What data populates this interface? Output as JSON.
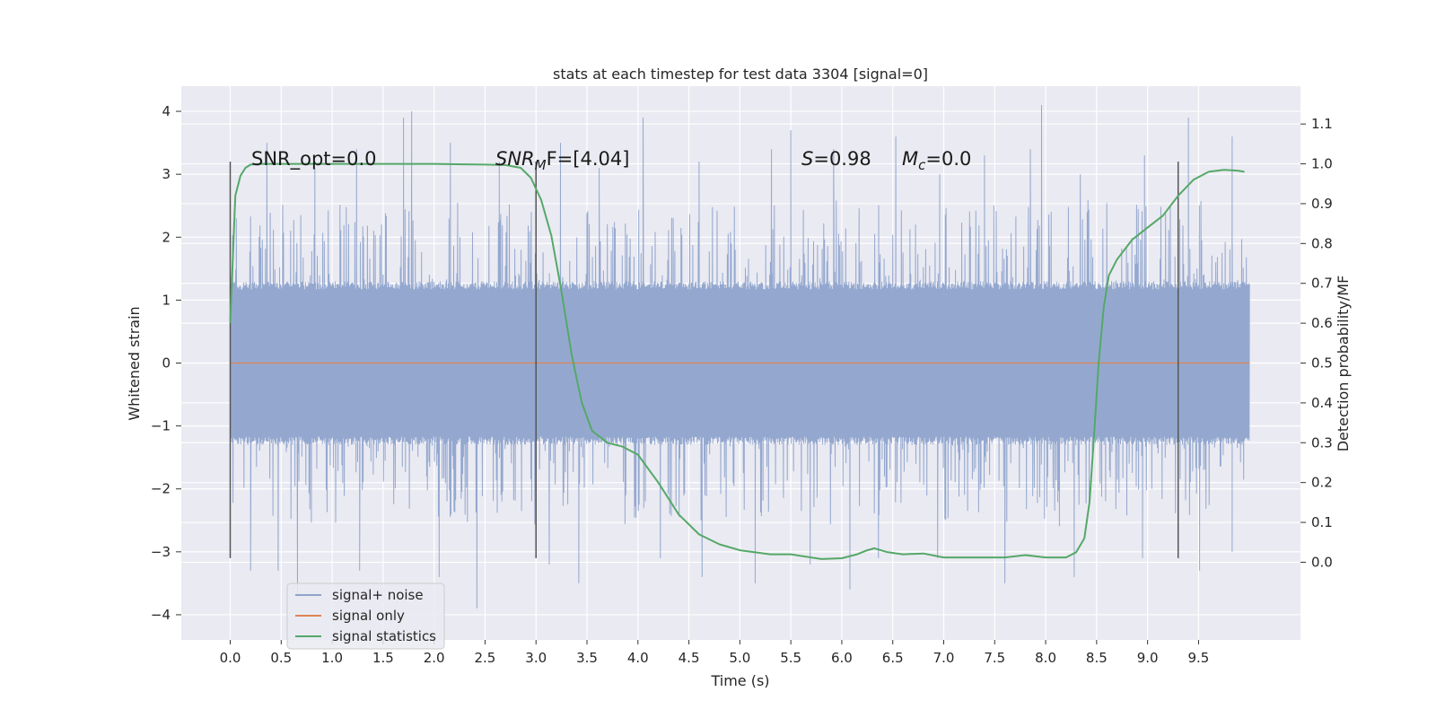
{
  "chart_data": {
    "type": "line",
    "title": "stats at each timestep for test data 3304 [signal=0]",
    "xlabel": "Time (s)",
    "ylabel": "Whitened strain",
    "y2label": "Detection probability/MF",
    "xlim": [
      -0.48,
      10.5
    ],
    "ylim": [
      -4.4,
      4.4
    ],
    "y2lim": [
      -0.195,
      1.195
    ],
    "xticks": [
      0.0,
      0.5,
      1.0,
      1.5,
      2.0,
      2.5,
      3.0,
      3.5,
      4.0,
      4.5,
      5.0,
      5.5,
      6.0,
      6.5,
      7.0,
      7.5,
      8.0,
      8.5,
      9.0,
      9.5
    ],
    "xtick_labels": [
      "0.0",
      "0.5",
      "1.0",
      "1.5",
      "2.0",
      "2.5",
      "3.0",
      "3.5",
      "4.0",
      "4.5",
      "5.0",
      "5.5",
      "6.0",
      "6.5",
      "7.0",
      "7.5",
      "8.0",
      "8.5",
      "9.0",
      "9.5"
    ],
    "yticks": [
      -4,
      -3,
      -2,
      -1,
      0,
      1,
      2,
      3,
      4
    ],
    "ytick_labels": [
      "−4",
      "−3",
      "−2",
      "−1",
      "0",
      "1",
      "2",
      "3",
      "4"
    ],
    "y2ticks": [
      0.0,
      0.1,
      0.2,
      0.3,
      0.4,
      0.5,
      0.6,
      0.7,
      0.8,
      0.9,
      1.0,
      1.1
    ],
    "y2tick_labels": [
      "0.0",
      "0.1",
      "0.2",
      "0.3",
      "0.4",
      "0.5",
      "0.6",
      "0.7",
      "0.8",
      "0.9",
      "1.0",
      "1.1"
    ],
    "grid": true,
    "legend_position": "lower-left",
    "noise": {
      "t_range": [
        0.0,
        10.0
      ],
      "envelope": 1.3,
      "upper_peak": [
        [
          0.06,
          2.3
        ],
        [
          0.36,
          3.5
        ],
        [
          0.83,
          3.1
        ],
        [
          1.24,
          3.4
        ],
        [
          1.7,
          3.9
        ],
        [
          1.78,
          4.0
        ],
        [
          2.16,
          3.5
        ],
        [
          2.64,
          3.2
        ],
        [
          3.24,
          3.5
        ],
        [
          3.62,
          3.1
        ],
        [
          4.05,
          3.9
        ],
        [
          4.6,
          3.2
        ],
        [
          5.31,
          3.4
        ],
        [
          5.5,
          3.7
        ],
        [
          5.92,
          3.4
        ],
        [
          6.53,
          3.6
        ],
        [
          6.96,
          3.0
        ],
        [
          7.4,
          3.3
        ],
        [
          7.85,
          3.4
        ],
        [
          7.96,
          4.1
        ],
        [
          8.34,
          3.0
        ],
        [
          8.97,
          3.3
        ],
        [
          9.4,
          3.9
        ],
        [
          9.83,
          3.6
        ]
      ],
      "lower_peak": [
        [
          0.2,
          -3.3
        ],
        [
          0.47,
          -3.3
        ],
        [
          0.66,
          -3.7
        ],
        [
          1.27,
          -3.3
        ],
        [
          2.05,
          -3.4
        ],
        [
          2.42,
          -3.9
        ],
        [
          3.13,
          -3.2
        ],
        [
          3.42,
          -3.5
        ],
        [
          4.22,
          -3.1
        ],
        [
          4.63,
          -3.4
        ],
        [
          5.15,
          -3.5
        ],
        [
          5.69,
          -3.2
        ],
        [
          6.08,
          -3.6
        ],
        [
          6.36,
          -3.1
        ],
        [
          6.94,
          -3.1
        ],
        [
          7.6,
          -3.5
        ],
        [
          8.28,
          -3.4
        ],
        [
          8.95,
          -3.1
        ],
        [
          9.51,
          -3.3
        ],
        [
          9.83,
          -3.0
        ]
      ]
    },
    "series": [
      {
        "name": "signal+ noise",
        "axis": "left",
        "color": "#8fa4cc"
      },
      {
        "name": "signal only",
        "axis": "left",
        "color": "#dd8452",
        "x": [
          0.0,
          10.0
        ],
        "y": [
          0.0,
          0.0
        ]
      },
      {
        "name": "signal statistics",
        "axis": "right",
        "color": "#55a868",
        "x": [
          0.0,
          0.05,
          0.1,
          0.15,
          0.2,
          0.3,
          0.5,
          1.0,
          1.5,
          2.0,
          2.5,
          2.7,
          2.85,
          2.95,
          3.05,
          3.15,
          3.25,
          3.35,
          3.45,
          3.55,
          3.7,
          3.85,
          4.0,
          4.2,
          4.4,
          4.6,
          4.8,
          5.0,
          5.3,
          5.5,
          5.8,
          6.0,
          6.15,
          6.25,
          6.32,
          6.45,
          6.6,
          6.8,
          7.0,
          7.3,
          7.6,
          7.8,
          8.0,
          8.2,
          8.3,
          8.38,
          8.43,
          8.47,
          8.52,
          8.57,
          8.62,
          8.7,
          8.85,
          9.0,
          9.15,
          9.3,
          9.45,
          9.6,
          9.75,
          9.88,
          9.95
        ],
        "y": [
          0.6,
          0.92,
          0.97,
          0.99,
          0.998,
          1.0,
          1.0,
          1.0,
          1.0,
          1.0,
          0.998,
          0.997,
          0.99,
          0.965,
          0.91,
          0.82,
          0.68,
          0.52,
          0.4,
          0.33,
          0.3,
          0.29,
          0.27,
          0.2,
          0.12,
          0.07,
          0.045,
          0.03,
          0.02,
          0.02,
          0.008,
          0.01,
          0.02,
          0.03,
          0.035,
          0.025,
          0.02,
          0.022,
          0.012,
          0.012,
          0.012,
          0.018,
          0.012,
          0.012,
          0.025,
          0.06,
          0.15,
          0.3,
          0.5,
          0.64,
          0.72,
          0.76,
          0.81,
          0.84,
          0.87,
          0.92,
          0.96,
          0.98,
          0.985,
          0.983,
          0.98
        ]
      }
    ],
    "vlines": [
      0.0,
      3.0,
      9.3
    ],
    "vline_span": [
      -3.1,
      3.2
    ],
    "annotations": {
      "snr_opt": "SNR_opt=0.0",
      "snr_mf_sym": "SNR",
      "snr_mf_sub": "M",
      "snr_mf_rest": "F=[4.04]",
      "s_sym": "S",
      "s_rest": "=0.98",
      "mc_sym": "M",
      "mc_sub": "c",
      "mc_rest": "=0.0"
    }
  }
}
